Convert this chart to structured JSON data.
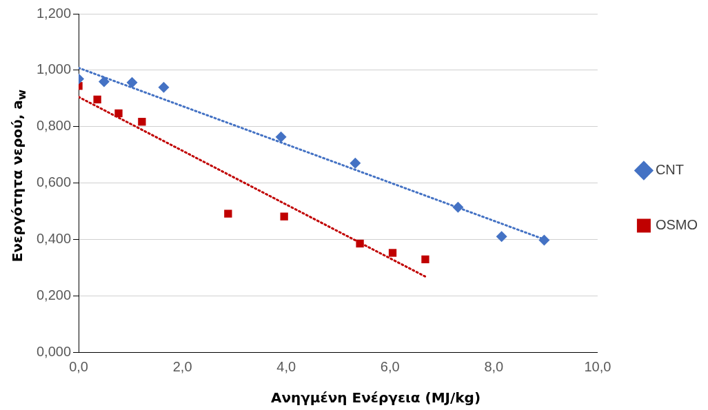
{
  "chart_data": {
    "type": "scatter",
    "xlabel": "Ανηγμένη Ενέργεια (MJ/kg)",
    "ylabel": "Ενεργότητα νερού, a$_{w}$",
    "xlim": [
      0,
      10
    ],
    "xticks": [
      {
        "value": 0,
        "label": "0,0"
      },
      {
        "value": 2,
        "label": "2,0"
      },
      {
        "value": 4,
        "label": "4,0"
      },
      {
        "value": 6,
        "label": "6,0"
      },
      {
        "value": 8,
        "label": "8,0"
      },
      {
        "value": 10,
        "label": "10,0"
      }
    ],
    "ylim": [
      0,
      1.2
    ],
    "yticks": [
      {
        "value": 0,
        "label": "0,000"
      },
      {
        "value": 0.2,
        "label": "0,200"
      },
      {
        "value": 0.4,
        "label": "0,400"
      },
      {
        "value": 0.6,
        "label": "0,600"
      },
      {
        "value": 0.8,
        "label": "0,800"
      },
      {
        "value": 1,
        "label": "1,000"
      },
      {
        "value": 1.2,
        "label": "1,200"
      }
    ],
    "grid": "y",
    "legend": "right",
    "series": [
      {
        "name": "CNT",
        "color": "#4472c4",
        "marker": "diamond",
        "x": [
          0,
          0.49,
          1.03,
          1.64,
          3.9,
          5.33,
          7.31,
          8.15,
          8.97
        ],
        "values": [
          0.969,
          0.959,
          0.956,
          0.939,
          0.763,
          0.67,
          0.514,
          0.41,
          0.397
        ]
      },
      {
        "name": "OSMO",
        "color": "#c00000",
        "marker": "square",
        "x": [
          0,
          0.36,
          0.77,
          1.22,
          2.88,
          3.96,
          5.42,
          6.05,
          6.68
        ],
        "values": [
          0.944,
          0.896,
          0.847,
          0.817,
          0.491,
          0.481,
          0.385,
          0.352,
          0.329
        ]
      },
      {
        "type": "line",
        "color": "#4472c4",
        "line_style": "dotted",
        "marker": "none",
        "x": [
          0,
          8.97
        ],
        "values": [
          1.008,
          0.4
        ]
      },
      {
        "type": "line",
        "color": "#c00000",
        "line_style": "dotted",
        "marker": "none",
        "x": [
          0,
          6.68
        ],
        "values": [
          0.905,
          0.268
        ]
      }
    ]
  }
}
